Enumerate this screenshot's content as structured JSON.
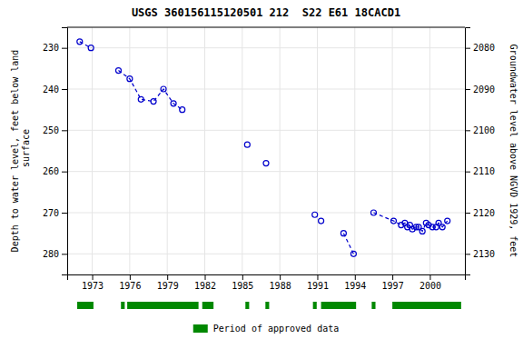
{
  "chart_data": {
    "type": "scatter",
    "title": "USGS 360156115120501 212  S22 E61 18CACD1",
    "ylabel": "Depth to water level, feet below land\n surface",
    "y2label": "Groundwater level above NGVD 1929, feet",
    "xlim": [
      1971.0,
      2002.8
    ],
    "xticks": [
      1973,
      1976,
      1979,
      1982,
      1985,
      1988,
      1991,
      1994,
      1997,
      2000
    ],
    "ylim": [
      285,
      225
    ],
    "yticks": [
      230,
      240,
      250,
      260,
      270,
      280
    ],
    "y2lim": [
      2135,
      2075
    ],
    "y2ticks": [
      2080,
      2090,
      2100,
      2110,
      2120,
      2130
    ],
    "grid": true,
    "series": [
      {
        "type": "scatter",
        "marker": "circle",
        "color": "#0000cc",
        "x": [
          1972.0,
          1972.9,
          1975.1,
          1976.0,
          1976.9,
          1977.9,
          1978.7,
          1979.5,
          1980.2,
          1985.4,
          1986.9,
          1990.8,
          1991.3,
          1993.1,
          1993.9,
          1995.5,
          1997.1,
          1997.7,
          1998.0,
          1998.2,
          1998.4,
          1998.6,
          1998.9,
          1999.1,
          1999.4,
          1999.7,
          1999.9,
          2000.2,
          2000.5,
          2000.7,
          2001.0,
          2001.4
        ],
        "values": [
          228.5,
          230.0,
          235.5,
          237.5,
          242.5,
          243.0,
          240.0,
          243.5,
          245.0,
          253.5,
          258.0,
          270.5,
          272.0,
          275.0,
          280.0,
          270.0,
          272.0,
          273.0,
          272.5,
          273.5,
          273.0,
          274.0,
          273.5,
          273.5,
          274.5,
          272.5,
          273.0,
          273.5,
          273.5,
          272.5,
          273.5,
          272.0
        ]
      },
      {
        "type": "line",
        "line_style": "dashed",
        "color": "#0000cc",
        "x": [
          1972.0,
          1972.9
        ],
        "values": [
          228.5,
          230.0
        ]
      },
      {
        "type": "line",
        "line_style": "dashed",
        "color": "#0000cc",
        "x": [
          1975.1,
          1976.0,
          1976.9,
          1977.9,
          1978.7,
          1979.5,
          1980.2
        ],
        "values": [
          235.5,
          237.5,
          242.5,
          243.0,
          240.0,
          243.5,
          245.0
        ]
      },
      {
        "type": "line",
        "line_style": "dashed",
        "color": "#0000cc",
        "x": [
          1993.1,
          1993.9
        ],
        "values": [
          275.0,
          280.0
        ]
      },
      {
        "type": "line",
        "line_style": "dashed",
        "color": "#0000cc",
        "x": [
          1995.5,
          1997.1,
          1997.7,
          1998.0,
          1998.2,
          1998.4,
          1998.6,
          1998.9,
          1999.1,
          1999.4,
          1999.7,
          1999.9,
          2000.2,
          2000.5,
          2000.7,
          2001.0,
          2001.4
        ],
        "values": [
          270.0,
          272.0,
          273.0,
          272.5,
          273.5,
          273.0,
          274.0,
          273.5,
          273.5,
          274.5,
          272.5,
          273.0,
          273.5,
          273.5,
          272.5,
          273.5,
          272.0
        ]
      },
      {
        "type": "span",
        "name": "Period of approved data",
        "color": "#008800",
        "values": [
          [
            1971.8,
            1973.1
          ],
          [
            1975.3,
            1975.6
          ],
          [
            1975.8,
            1981.5
          ],
          [
            1981.8,
            1982.7
          ],
          [
            1985.25,
            1985.55
          ],
          [
            1986.85,
            1987.15
          ],
          [
            1990.65,
            1990.95
          ],
          [
            1991.3,
            1994.1
          ],
          [
            1995.35,
            1995.65
          ],
          [
            1997.0,
            2002.5
          ]
        ]
      }
    ]
  }
}
